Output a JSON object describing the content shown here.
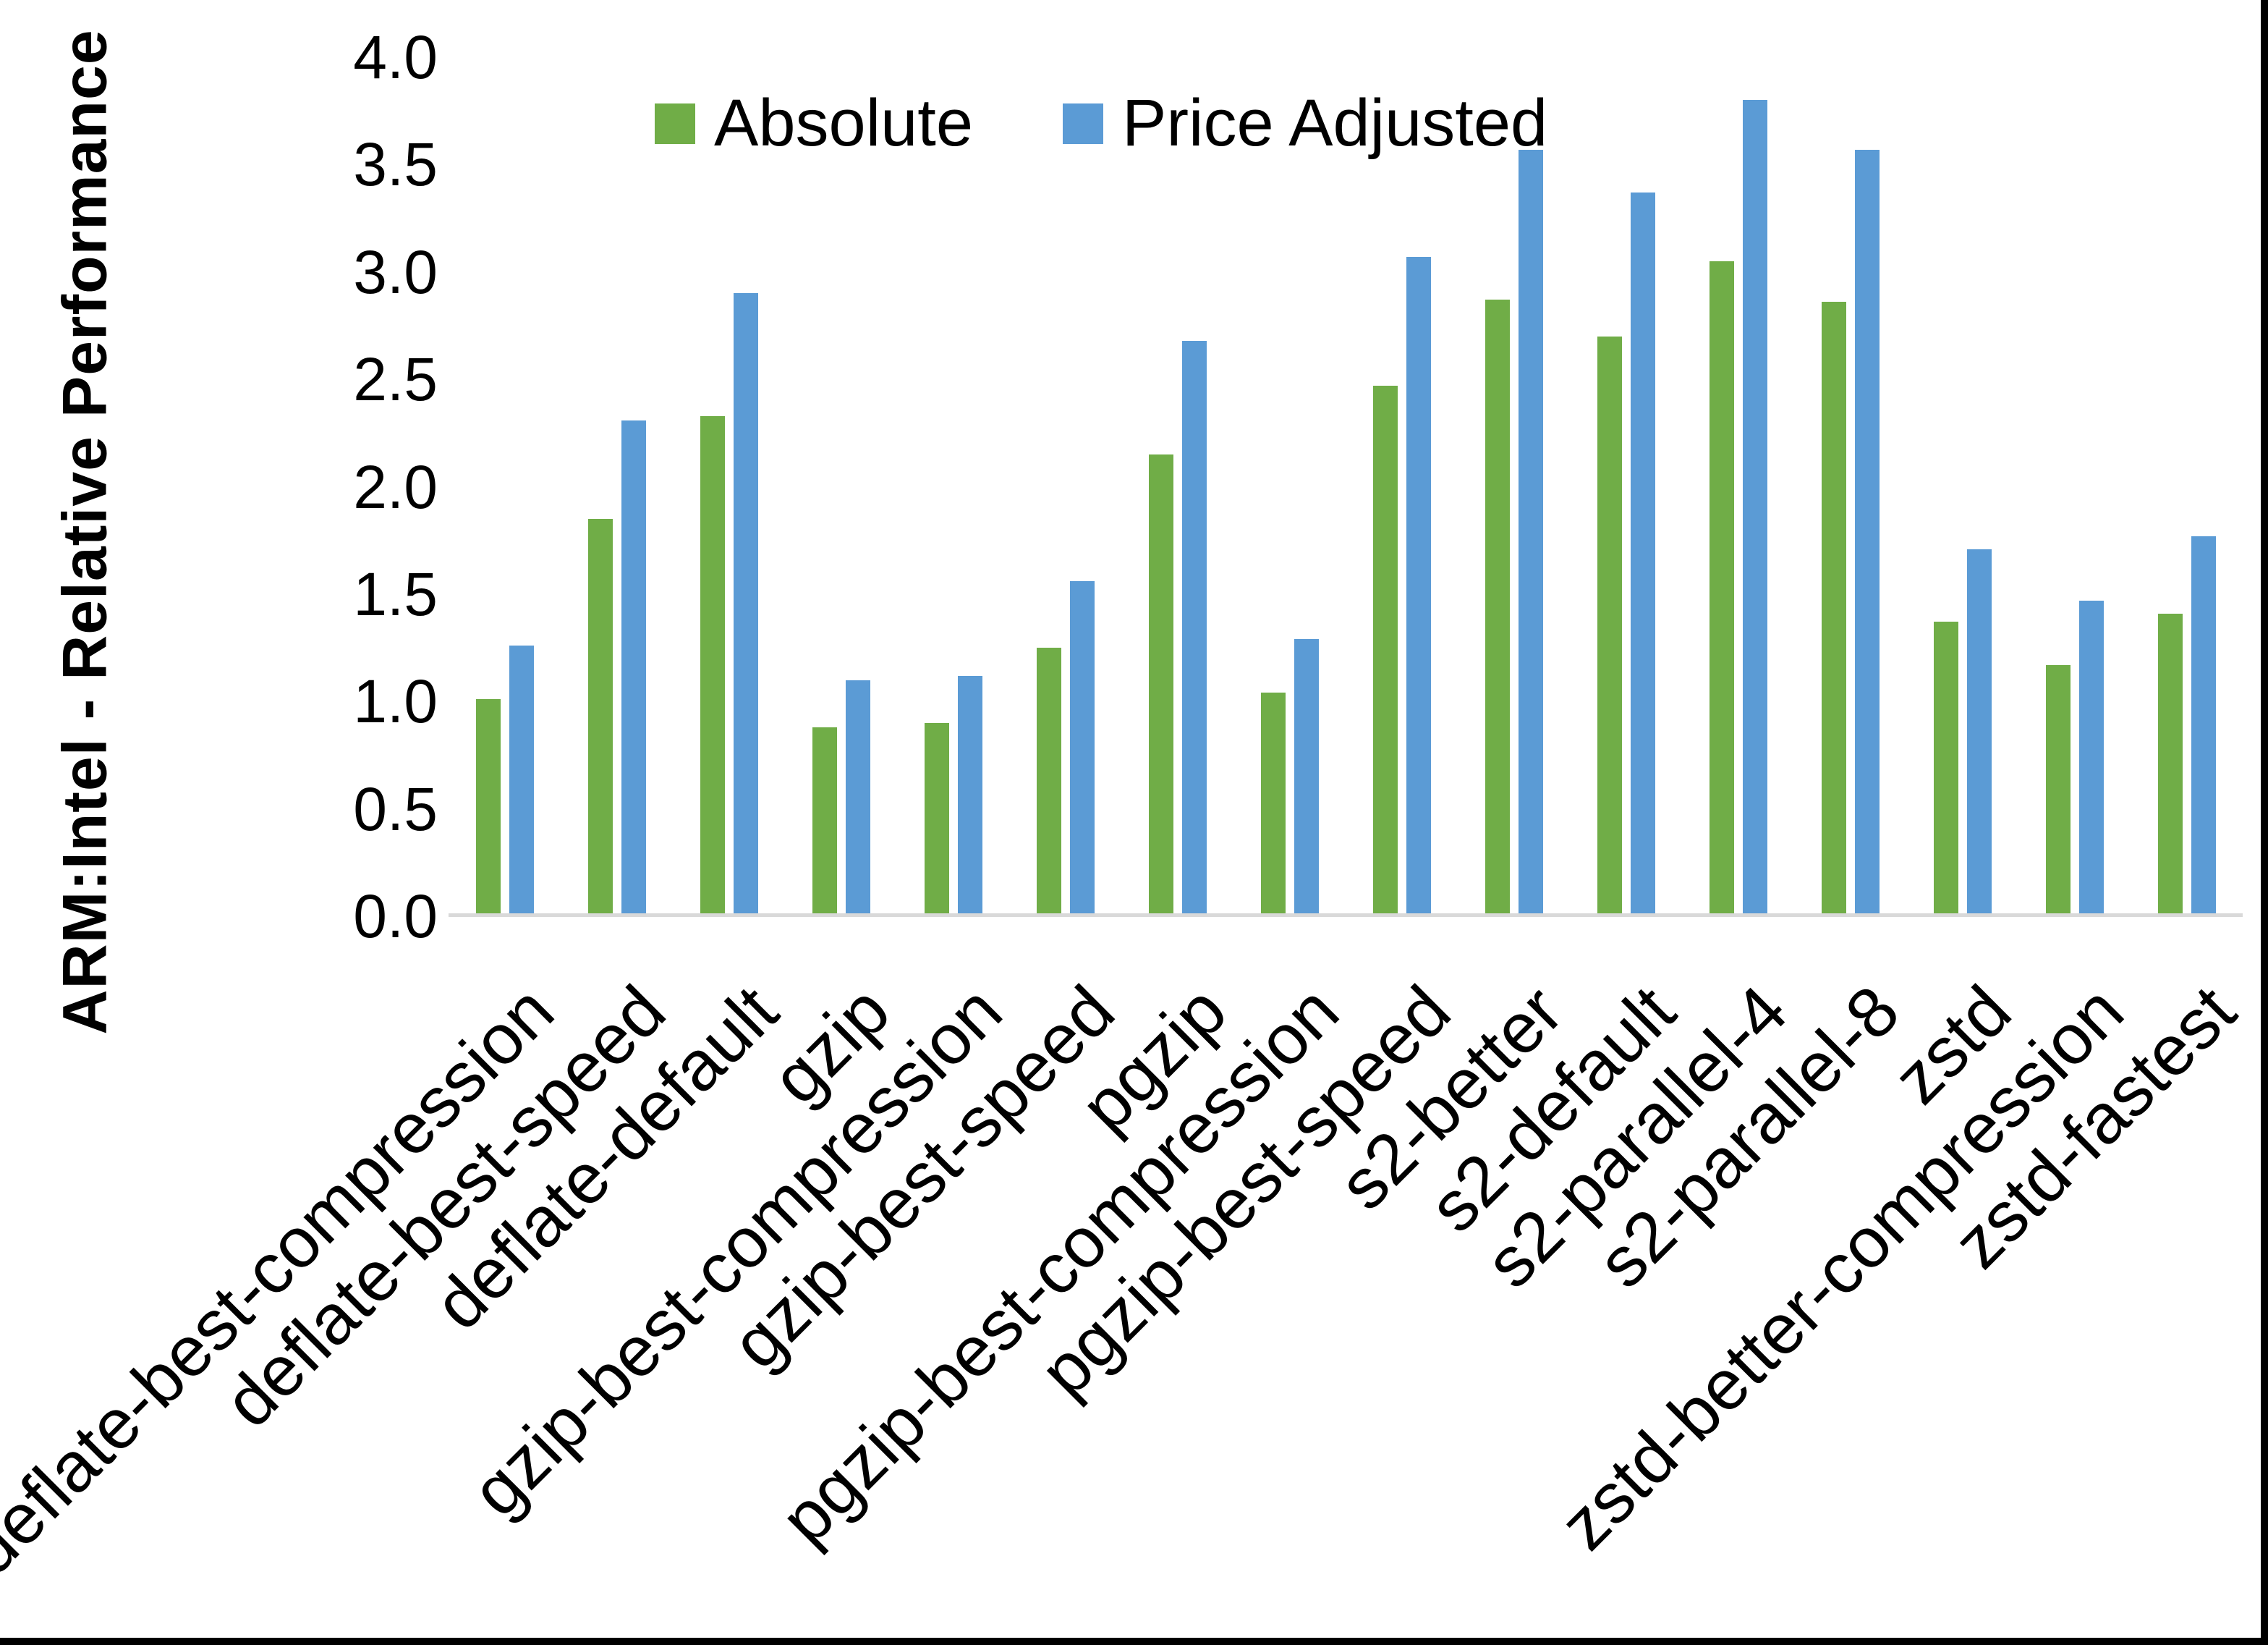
{
  "figure": {
    "background_color": "#ffffff",
    "frame_border_color": "#000000",
    "frame_border_sides": "right-and-bottom"
  },
  "chart_data": {
    "type": "bar",
    "title": "",
    "xlabel": "",
    "ylabel": "ARM:Intel - Relative Performance",
    "ylim": [
      0.0,
      4.0
    ],
    "ytick_step": 0.5,
    "ytick_labels": [
      "4.0",
      "3.5",
      "3.0",
      "2.5",
      "2.0",
      "1.5",
      "1.0",
      "0.5",
      "0.0"
    ],
    "grid": false,
    "legend_position": "top-center-inside",
    "axis_line_color": "#d9d9d9",
    "text_color": "#000000",
    "x_label_rotation_deg": 45,
    "categories": [
      "deflate-best-compression",
      "deflate-best-speed",
      "deflate-default",
      "gzip",
      "gzip-best-compression",
      "gzip-best-speed",
      "pgzip",
      "pgzip-best-compression",
      "pgzip-best-speed",
      "s2-better",
      "s2-default",
      "s2-parallel-4",
      "s2-parallel-8",
      "zstd",
      "zstd-better-compression",
      "zstd-fastest"
    ],
    "series": [
      {
        "name": "Absolute",
        "color": "#70ad47",
        "values": [
          1.01,
          1.85,
          2.33,
          0.88,
          0.9,
          1.25,
          2.15,
          1.04,
          2.47,
          2.87,
          2.7,
          3.05,
          2.86,
          1.37,
          1.17,
          1.41
        ]
      },
      {
        "name": "Price Adjusted",
        "color": "#5b9bd5",
        "values": [
          1.26,
          2.31,
          2.9,
          1.1,
          1.12,
          1.56,
          2.68,
          1.29,
          3.07,
          3.57,
          3.37,
          3.8,
          3.57,
          1.71,
          1.47,
          1.77
        ]
      }
    ]
  }
}
